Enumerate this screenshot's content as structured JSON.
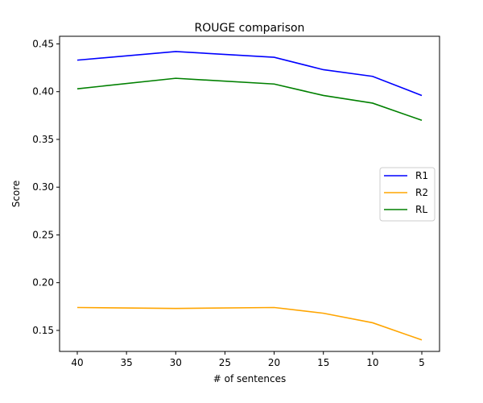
{
  "chart_data": {
    "type": "line",
    "title": "ROUGE comparison",
    "xlabel": "# of sentences",
    "ylabel": "Score",
    "x": [
      40,
      30,
      20,
      15,
      10,
      5
    ],
    "x_ticks": [
      40,
      35,
      30,
      25,
      20,
      15,
      10,
      5
    ],
    "x_ticks_text": [
      "40",
      "35",
      "30",
      "25",
      "20",
      "15",
      "10",
      "5"
    ],
    "xlim": [
      41.8,
      3.2
    ],
    "x_inverted": true,
    "y_ticks": [
      0.15,
      0.2,
      0.25,
      0.3,
      0.35,
      0.4,
      0.45
    ],
    "y_ticks_text": [
      "0.15",
      "0.20",
      "0.25",
      "0.30",
      "0.35",
      "0.40",
      "0.45"
    ],
    "ylim": [
      0.128,
      0.458
    ],
    "grid": false,
    "legend": "center-right",
    "series": [
      {
        "name": "R1",
        "color": "#0000ff",
        "values": [
          0.433,
          0.442,
          0.436,
          0.423,
          0.416,
          0.396
        ]
      },
      {
        "name": "R2",
        "color": "#ffa500",
        "values": [
          0.174,
          0.173,
          0.174,
          0.168,
          0.158,
          0.14
        ]
      },
      {
        "name": "RL",
        "color": "#008000",
        "values": [
          0.403,
          0.414,
          0.408,
          0.396,
          0.388,
          0.37
        ]
      }
    ]
  }
}
